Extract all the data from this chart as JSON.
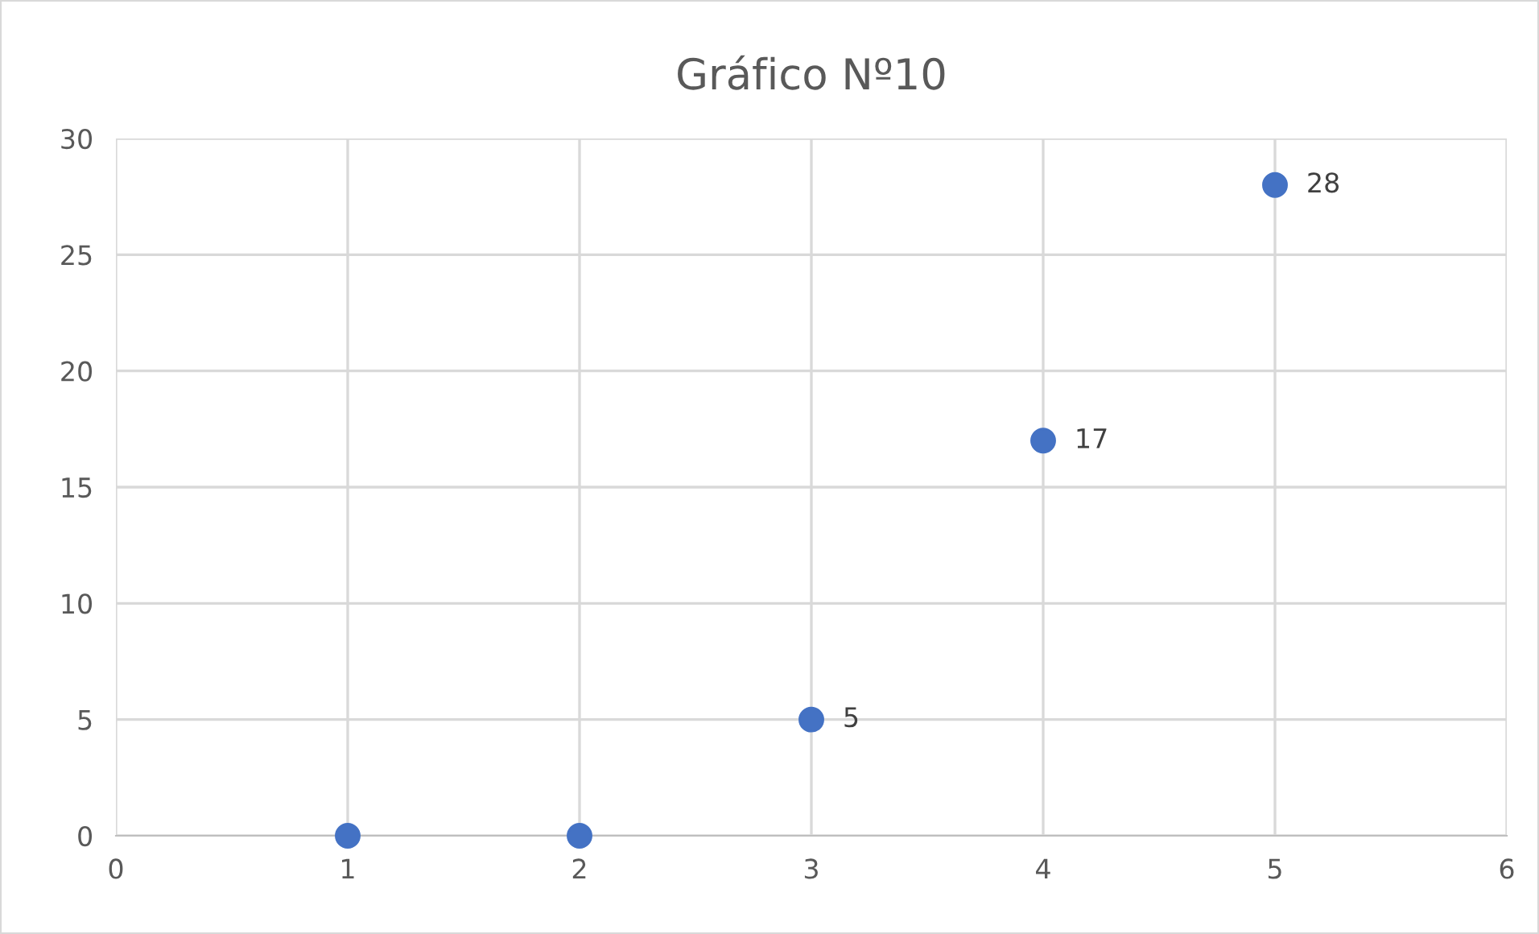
{
  "chart_data": {
    "type": "scatter",
    "title": "Gráfico Nº10",
    "x": [
      1,
      2,
      3,
      4,
      5
    ],
    "series": [
      {
        "color": "#4472c4",
        "values": [
          0,
          0,
          5,
          17,
          28
        ],
        "value_labels": [
          null,
          null,
          "5",
          "17",
          "28"
        ]
      }
    ],
    "xlim": [
      0,
      6
    ],
    "xticks": [
      0,
      1,
      2,
      3,
      4,
      5,
      6
    ],
    "ylim": [
      0,
      30
    ],
    "yticks": [
      0,
      5,
      10,
      15,
      20,
      25,
      30
    ],
    "grid": true,
    "marker": "circle",
    "legend": false
  }
}
